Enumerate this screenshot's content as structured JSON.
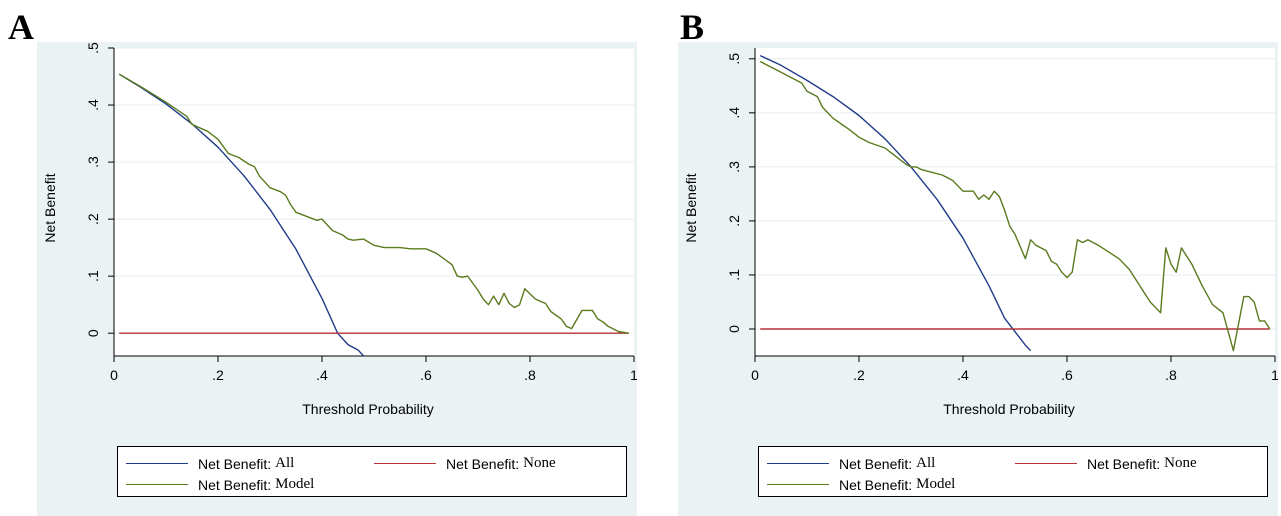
{
  "colors": {
    "panel_bg": "#eaf2f3",
    "plot_bg": "#ffffff",
    "grid": "#e6eef0",
    "all": "#1f3c88",
    "none": "#b5323a",
    "model": "#5a7a1e"
  },
  "chart_data": [
    {
      "panel": "A",
      "type": "line",
      "xlabel": "Threshold Probability",
      "ylabel": "Net Benefit",
      "xlim": [
        0,
        1
      ],
      "ylim": [
        -0.04,
        0.5
      ],
      "xticks": [
        {
          "v": 0,
          "t": "0"
        },
        {
          "v": 0.2,
          "t": ".2"
        },
        {
          "v": 0.4,
          "t": ".4"
        },
        {
          "v": 0.6,
          "t": ".6"
        },
        {
          "v": 0.8,
          "t": ".8"
        },
        {
          "v": 1,
          "t": "1"
        }
      ],
      "yticks": [
        {
          "v": 0,
          "t": "0"
        },
        {
          "v": 0.1,
          "t": ".1"
        },
        {
          "v": 0.2,
          "t": ".2"
        },
        {
          "v": 0.3,
          "t": ".3"
        },
        {
          "v": 0.4,
          "t": ".4"
        },
        {
          "v": 0.5,
          "t": ".5"
        }
      ],
      "grid": true,
      "legend_position": "bottom",
      "series": [
        {
          "name": "Net Benefit: All",
          "key": "all",
          "x": [
            0.01,
            0.05,
            0.1,
            0.15,
            0.2,
            0.25,
            0.3,
            0.35,
            0.4,
            0.43,
            0.45,
            0.47,
            0.48
          ],
          "y": [
            0.454,
            0.432,
            0.402,
            0.367,
            0.326,
            0.276,
            0.217,
            0.147,
            0.061,
            0.0,
            -0.02,
            -0.03,
            -0.04
          ]
        },
        {
          "name": "Net Benefit: None",
          "key": "none",
          "x": [
            0.01,
            0.99
          ],
          "y": [
            0,
            0
          ]
        },
        {
          "name": "Net Benefit: Model",
          "key": "model",
          "x": [
            0.01,
            0.05,
            0.1,
            0.14,
            0.15,
            0.18,
            0.2,
            0.22,
            0.24,
            0.26,
            0.27,
            0.28,
            0.3,
            0.32,
            0.33,
            0.34,
            0.35,
            0.37,
            0.39,
            0.4,
            0.42,
            0.44,
            0.45,
            0.46,
            0.48,
            0.5,
            0.52,
            0.55,
            0.57,
            0.6,
            0.62,
            0.65,
            0.66,
            0.67,
            0.68,
            0.7,
            0.71,
            0.72,
            0.73,
            0.74,
            0.75,
            0.76,
            0.77,
            0.78,
            0.79,
            0.81,
            0.83,
            0.84,
            0.86,
            0.87,
            0.88,
            0.9,
            0.91,
            0.92,
            0.93,
            0.94,
            0.95,
            0.97,
            0.99
          ],
          "y": [
            0.454,
            0.433,
            0.405,
            0.38,
            0.366,
            0.354,
            0.34,
            0.315,
            0.308,
            0.296,
            0.292,
            0.275,
            0.255,
            0.248,
            0.242,
            0.225,
            0.212,
            0.205,
            0.198,
            0.2,
            0.18,
            0.172,
            0.165,
            0.163,
            0.165,
            0.154,
            0.15,
            0.15,
            0.148,
            0.148,
            0.14,
            0.12,
            0.1,
            0.098,
            0.1,
            0.075,
            0.06,
            0.05,
            0.065,
            0.05,
            0.07,
            0.052,
            0.045,
            0.05,
            0.078,
            0.06,
            0.052,
            0.038,
            0.025,
            0.012,
            0.008,
            0.04,
            0.04,
            0.04,
            0.025,
            0.02,
            0.012,
            0.003,
            0.0
          ]
        }
      ]
    },
    {
      "panel": "B",
      "type": "line",
      "xlabel": "Threshold Probability",
      "ylabel": "Net Benefit",
      "xlim": [
        0,
        1
      ],
      "ylim": [
        -0.05,
        0.52
      ],
      "xticks": [
        {
          "v": 0,
          "t": "0"
        },
        {
          "v": 0.2,
          "t": ".2"
        },
        {
          "v": 0.4,
          "t": ".4"
        },
        {
          "v": 0.6,
          "t": ".6"
        },
        {
          "v": 0.8,
          "t": ".8"
        },
        {
          "v": 1,
          "t": "1"
        }
      ],
      "yticks": [
        {
          "v": 0,
          "t": "0"
        },
        {
          "v": 0.1,
          "t": ".1"
        },
        {
          "v": 0.2,
          "t": ".2"
        },
        {
          "v": 0.3,
          "t": ".3"
        },
        {
          "v": 0.4,
          "t": ".4"
        },
        {
          "v": 0.5,
          "t": ".5"
        }
      ],
      "grid": true,
      "legend_position": "bottom",
      "series": [
        {
          "name": "Net Benefit: All",
          "key": "all",
          "x": [
            0.01,
            0.05,
            0.1,
            0.15,
            0.2,
            0.25,
            0.3,
            0.35,
            0.4,
            0.45,
            0.48,
            0.5,
            0.52,
            0.53
          ],
          "y": [
            0.506,
            0.488,
            0.46,
            0.43,
            0.395,
            0.352,
            0.3,
            0.24,
            0.168,
            0.08,
            0.02,
            -0.005,
            -0.03,
            -0.04
          ]
        },
        {
          "name": "Net Benefit: None",
          "key": "none",
          "x": [
            0.01,
            0.99
          ],
          "y": [
            0,
            0
          ]
        },
        {
          "name": "Net Benefit: Model",
          "key": "model",
          "x": [
            0.01,
            0.05,
            0.09,
            0.1,
            0.12,
            0.13,
            0.15,
            0.18,
            0.2,
            0.22,
            0.25,
            0.27,
            0.29,
            0.3,
            0.31,
            0.32,
            0.34,
            0.36,
            0.38,
            0.4,
            0.42,
            0.43,
            0.44,
            0.45,
            0.46,
            0.47,
            0.48,
            0.49,
            0.5,
            0.52,
            0.53,
            0.54,
            0.56,
            0.57,
            0.58,
            0.59,
            0.6,
            0.61,
            0.62,
            0.63,
            0.64,
            0.66,
            0.7,
            0.72,
            0.73,
            0.74,
            0.75,
            0.76,
            0.78,
            0.79,
            0.8,
            0.81,
            0.82,
            0.84,
            0.86,
            0.88,
            0.9,
            0.92,
            0.94,
            0.95,
            0.96,
            0.97,
            0.98,
            0.99
          ],
          "y": [
            0.495,
            0.475,
            0.455,
            0.44,
            0.43,
            0.41,
            0.39,
            0.37,
            0.355,
            0.345,
            0.335,
            0.32,
            0.305,
            0.3,
            0.3,
            0.295,
            0.29,
            0.285,
            0.275,
            0.255,
            0.255,
            0.24,
            0.248,
            0.24,
            0.255,
            0.245,
            0.22,
            0.19,
            0.175,
            0.13,
            0.165,
            0.155,
            0.145,
            0.125,
            0.12,
            0.105,
            0.095,
            0.105,
            0.165,
            0.16,
            0.165,
            0.155,
            0.13,
            0.11,
            0.095,
            0.08,
            0.065,
            0.05,
            0.03,
            0.15,
            0.12,
            0.105,
            0.15,
            0.12,
            0.08,
            0.045,
            0.03,
            -0.04,
            0.06,
            0.06,
            0.05,
            0.015,
            0.015,
            0.0
          ]
        }
      ]
    }
  ],
  "panels": {
    "a": {
      "letter": "A"
    },
    "b": {
      "letter": "B"
    }
  },
  "legend": {
    "all": {
      "main": "Net Benefit:",
      "sub": "All"
    },
    "none": {
      "main": "Net Benefit:",
      "sub": "None"
    },
    "model": {
      "main": "Net Benefit:",
      "sub": "Model"
    }
  }
}
